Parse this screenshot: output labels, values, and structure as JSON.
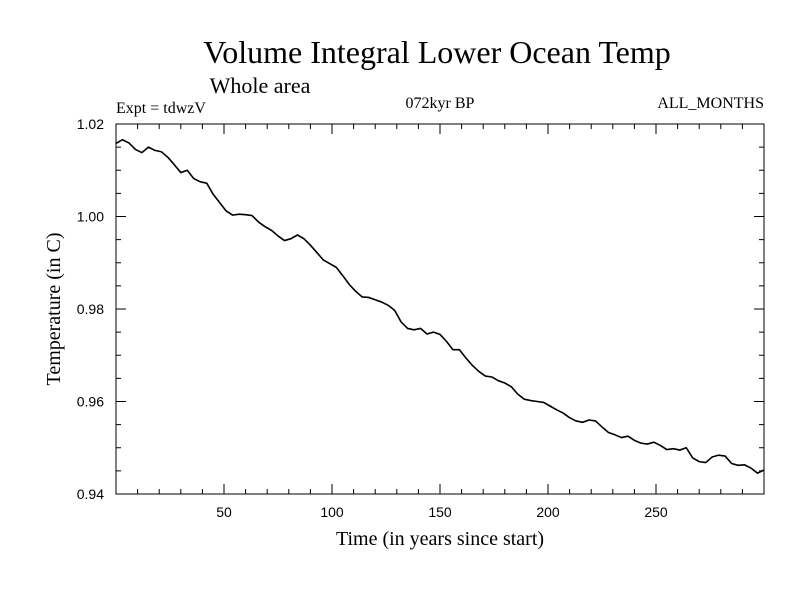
{
  "chart_data": {
    "type": "line",
    "title": "Volume Integral Lower Ocean Temp",
    "subtitle": "Whole area",
    "annotations": {
      "left": "Expt = tdwzV",
      "center": "072kyr BP",
      "right": "ALL_MONTHS"
    },
    "xlabel": "Time (in years since start)",
    "ylabel": "Temperature (in C)",
    "xlim": [
      0,
      300
    ],
    "ylim": [
      0.94,
      1.02
    ],
    "xticks": [
      50,
      100,
      150,
      200,
      250
    ],
    "xtick_labels": [
      "50",
      "100",
      "150",
      "200",
      "250"
    ],
    "yticks": [
      0.94,
      0.96,
      0.98,
      1.0,
      1.02
    ],
    "ytick_labels": [
      "0.94",
      "0.96",
      "0.98",
      "1.00",
      "1.02"
    ],
    "grid": false,
    "series_color": "#000000",
    "series": [
      {
        "x": [
          0,
          3,
          6,
          9,
          12,
          15,
          18,
          21,
          24,
          27,
          30,
          33,
          36,
          39,
          42,
          45,
          48,
          51,
          54,
          57,
          60,
          63,
          66,
          69,
          72,
          75,
          78,
          81,
          84,
          87,
          90,
          93,
          96,
          99,
          102,
          105,
          108,
          111,
          114,
          117,
          120,
          123,
          126,
          129,
          132,
          135,
          138,
          141,
          144,
          147,
          150,
          153,
          156,
          159,
          162,
          165,
          168,
          171,
          174,
          177,
          180,
          183,
          186,
          189,
          192,
          195,
          198,
          201,
          204,
          207,
          210,
          213,
          216,
          219,
          222,
          225,
          228,
          231,
          234,
          237,
          240,
          243,
          246,
          249,
          252,
          255,
          258,
          261,
          264,
          267,
          270,
          273,
          276,
          279,
          282,
          285,
          288,
          291,
          294,
          297,
          300
        ],
        "values": [
          1.0158,
          1.0166,
          1.0159,
          1.0145,
          1.0138,
          1.015,
          1.0143,
          1.014,
          1.0128,
          1.0112,
          1.0095,
          1.01,
          1.0082,
          1.0075,
          1.0072,
          1.0048,
          1.003,
          1.0012,
          1.0003,
          1.0005,
          1.0004,
          1.0002,
          0.9988,
          0.9978,
          0.997,
          0.9958,
          0.9948,
          0.9952,
          0.996,
          0.9952,
          0.9938,
          0.9922,
          0.9906,
          0.9898,
          0.989,
          0.9872,
          0.9853,
          0.9838,
          0.9826,
          0.9825,
          0.982,
          0.9815,
          0.9808,
          0.9797,
          0.9772,
          0.9758,
          0.9755,
          0.9758,
          0.9746,
          0.975,
          0.9745,
          0.973,
          0.9712,
          0.9712,
          0.9694,
          0.9678,
          0.9665,
          0.9655,
          0.9653,
          0.9645,
          0.964,
          0.9632,
          0.9616,
          0.9605,
          0.9602,
          0.96,
          0.9598,
          0.959,
          0.9582,
          0.9575,
          0.9565,
          0.9558,
          0.9555,
          0.956,
          0.9558,
          0.9545,
          0.9533,
          0.9528,
          0.9522,
          0.9525,
          0.9516,
          0.951,
          0.9508,
          0.9512,
          0.9505,
          0.9496,
          0.9498,
          0.9495,
          0.95,
          0.9478,
          0.947,
          0.9468,
          0.948,
          0.9484,
          0.9482,
          0.9466,
          0.9462,
          0.9463,
          0.9456,
          0.9445,
          0.9452
        ]
      }
    ]
  }
}
